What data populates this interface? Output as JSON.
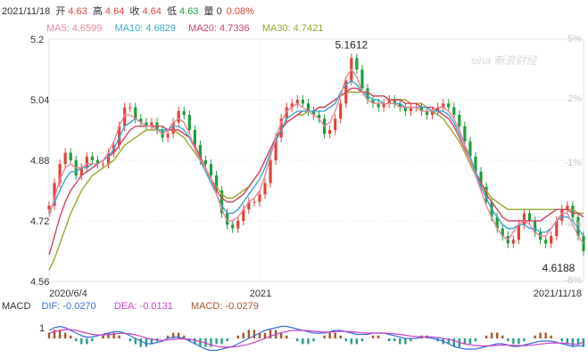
{
  "quote": {
    "date": "2021/11/18",
    "open_label": "开",
    "open": "4.63",
    "high_label": "高",
    "high": "4.64",
    "close_label": "收",
    "close": "4.64",
    "low_label": "低",
    "low": "4.63",
    "volume_label": "量",
    "volume": "0",
    "change_pct": "0.08%"
  },
  "ma": [
    {
      "label": "MA5:",
      "value": "4.6599",
      "color": "#e8869c"
    },
    {
      "label": "MA10:",
      "value": "4.6829",
      "color": "#3aa7c9"
    },
    {
      "label": "MA20:",
      "value": "4.7336",
      "color": "#d24366"
    },
    {
      "label": "MA30:",
      "value": "4.7421",
      "color": "#9aa72c"
    }
  ],
  "macd_legend": {
    "title": "MACD",
    "dif_label": "DIF:",
    "dif": "-0.0270",
    "dea_label": "DEA:",
    "dea": "-0.0131",
    "macd_label": "MACD:",
    "macd": "-0.0279"
  },
  "watermark": "sina 新浪财经",
  "chart_data": {
    "type": "candlestick",
    "y_ticks": [
      "5.2",
      "5.04",
      "4.88",
      "4.72",
      "4.56"
    ],
    "ylim": [
      4.56,
      5.2
    ],
    "pct_ticks": [
      "5%",
      "2%",
      "-1%",
      "-4%",
      "-8%"
    ],
    "x_ticks": [
      "2020/6/4",
      "2021",
      "2021/11/18"
    ],
    "max_annotation": "5.1612",
    "min_annotation": "4.6188",
    "macd_y_tick": "1",
    "close_series": [
      4.76,
      4.82,
      4.87,
      4.9,
      4.88,
      4.84,
      4.86,
      4.89,
      4.88,
      4.87,
      4.87,
      4.9,
      4.92,
      4.97,
      5.02,
      5.02,
      4.99,
      4.98,
      4.97,
      4.98,
      4.96,
      4.94,
      4.95,
      4.98,
      5.01,
      5.0,
      4.96,
      4.92,
      4.88,
      4.87,
      4.84,
      4.8,
      4.74,
      4.71,
      4.7,
      4.72,
      4.75,
      4.77,
      4.77,
      4.79,
      4.82,
      4.88,
      4.94,
      4.99,
      5.02,
      5.03,
      5.04,
      5.03,
      5.01,
      5.0,
      4.99,
      4.95,
      4.96,
      4.99,
      5.03,
      5.09,
      5.15,
      5.12,
      5.07,
      5.04,
      5.03,
      5.02,
      5.03,
      5.04,
      5.03,
      5.02,
      5.01,
      5.02,
      5.02,
      5.01,
      5.0,
      5.01,
      5.02,
      5.03,
      5.02,
      5.0,
      4.97,
      4.93,
      4.89,
      4.85,
      4.81,
      4.77,
      4.73,
      4.7,
      4.68,
      4.66,
      4.67,
      4.71,
      4.74,
      4.72,
      4.69,
      4.67,
      4.66,
      4.68,
      4.72,
      4.75,
      4.76,
      4.73,
      4.68,
      4.64
    ],
    "ma5": [
      4.73,
      4.78,
      4.83,
      4.86,
      4.87,
      4.86,
      4.86,
      4.87,
      4.87,
      4.87,
      4.88,
      4.9,
      4.93,
      4.97,
      5.0,
      5.0,
      4.99,
      4.98,
      4.97,
      4.97,
      4.96,
      4.95,
      4.96,
      4.98,
      4.99,
      4.98,
      4.95,
      4.91,
      4.88,
      4.86,
      4.83,
      4.79,
      4.75,
      4.72,
      4.72,
      4.73,
      4.75,
      4.77,
      4.78,
      4.8,
      4.84,
      4.89,
      4.94,
      4.98,
      5.01,
      5.02,
      5.03,
      5.02,
      5.01,
      5.0,
      4.99,
      4.97,
      4.98,
      5.01,
      5.05,
      5.1,
      5.12,
      5.1,
      5.06,
      5.04,
      5.03,
      5.03,
      5.03,
      5.03,
      5.03,
      5.02,
      5.02,
      5.02,
      5.02,
      5.01,
      5.01,
      5.01,
      5.02,
      5.02,
      5.01,
      4.99,
      4.96,
      4.92,
      4.88,
      4.84,
      4.8,
      4.76,
      4.73,
      4.7,
      4.68,
      4.67,
      4.69,
      4.71,
      4.72,
      4.71,
      4.69,
      4.68,
      4.68,
      4.7,
      4.72,
      4.74,
      4.74,
      4.71,
      4.68,
      4.66
    ],
    "ma10": [
      4.74,
      4.77,
      4.8,
      4.83,
      4.85,
      4.85,
      4.86,
      4.86,
      4.87,
      4.87,
      4.88,
      4.89,
      4.91,
      4.94,
      4.97,
      4.98,
      4.99,
      4.98,
      4.97,
      4.97,
      4.96,
      4.96,
      4.96,
      4.97,
      4.97,
      4.96,
      4.94,
      4.91,
      4.88,
      4.85,
      4.82,
      4.79,
      4.76,
      4.74,
      4.74,
      4.75,
      4.77,
      4.79,
      4.81,
      4.83,
      4.86,
      4.9,
      4.93,
      4.96,
      4.99,
      5.0,
      5.01,
      5.01,
      5.01,
      5.01,
      5.01,
      5.01,
      5.02,
      5.03,
      5.06,
      5.08,
      5.09,
      5.08,
      5.06,
      5.05,
      5.04,
      5.04,
      5.03,
      5.03,
      5.03,
      5.03,
      5.02,
      5.02,
      5.02,
      5.02,
      5.02,
      5.01,
      5.01,
      5.01,
      5.0,
      4.98,
      4.95,
      4.92,
      4.89,
      4.85,
      4.81,
      4.78,
      4.75,
      4.73,
      4.71,
      4.7,
      4.7,
      4.71,
      4.71,
      4.7,
      4.7,
      4.69,
      4.69,
      4.7,
      4.72,
      4.73,
      4.73,
      4.72,
      4.7,
      4.68
    ],
    "ma20": [
      4.63,
      4.68,
      4.73,
      4.77,
      4.8,
      4.82,
      4.84,
      4.85,
      4.86,
      4.87,
      4.88,
      4.89,
      4.9,
      4.92,
      4.94,
      4.96,
      4.97,
      4.97,
      4.97,
      4.97,
      4.97,
      4.97,
      4.96,
      4.96,
      4.96,
      4.95,
      4.94,
      4.92,
      4.89,
      4.86,
      4.83,
      4.8,
      4.78,
      4.77,
      4.77,
      4.78,
      4.79,
      4.81,
      4.83,
      4.85,
      4.88,
      4.91,
      4.94,
      4.96,
      4.98,
      4.99,
      5.0,
      5.01,
      5.01,
      5.01,
      5.02,
      5.02,
      5.03,
      5.04,
      5.05,
      5.06,
      5.07,
      5.07,
      5.06,
      5.06,
      5.05,
      5.05,
      5.05,
      5.04,
      5.04,
      5.04,
      5.03,
      5.03,
      5.03,
      5.02,
      5.02,
      5.02,
      5.01,
      5.0,
      4.99,
      4.97,
      4.94,
      4.91,
      4.88,
      4.85,
      4.82,
      4.79,
      4.77,
      4.75,
      4.73,
      4.72,
      4.72,
      4.72,
      4.72,
      4.72,
      4.72,
      4.72,
      4.73,
      4.74,
      4.75,
      4.75,
      4.75,
      4.74,
      4.74,
      4.73
    ],
    "ma30": [
      4.59,
      4.62,
      4.66,
      4.7,
      4.74,
      4.77,
      4.8,
      4.82,
      4.84,
      4.85,
      4.86,
      4.87,
      4.88,
      4.9,
      4.92,
      4.93,
      4.94,
      4.95,
      4.96,
      4.96,
      4.96,
      4.96,
      4.96,
      4.96,
      4.95,
      4.94,
      4.92,
      4.9,
      4.88,
      4.85,
      4.83,
      4.81,
      4.79,
      4.78,
      4.78,
      4.79,
      4.8,
      4.81,
      4.83,
      4.85,
      4.88,
      4.91,
      4.94,
      4.96,
      4.98,
      4.99,
      5.0,
      5.0,
      5.01,
      5.01,
      5.02,
      5.02,
      5.03,
      5.04,
      5.05,
      5.06,
      5.06,
      5.06,
      5.06,
      5.06,
      5.05,
      5.05,
      5.05,
      5.04,
      5.04,
      5.04,
      5.04,
      5.03,
      5.03,
      5.03,
      5.02,
      5.01,
      5.0,
      4.99,
      4.97,
      4.95,
      4.93,
      4.9,
      4.87,
      4.84,
      4.82,
      4.8,
      4.78,
      4.77,
      4.76,
      4.75,
      4.75,
      4.75,
      4.75,
      4.75,
      4.75,
      4.75,
      4.75,
      4.75,
      4.75,
      4.75,
      4.75,
      4.75,
      4.74,
      4.74
    ],
    "macd_hist": [
      0.02,
      0.03,
      0.03,
      0.02,
      0.01,
      -0.01,
      -0.02,
      -0.02,
      -0.01,
      0.0,
      0.01,
      0.02,
      0.02,
      0.01,
      0.0,
      -0.01,
      -0.02,
      -0.03,
      -0.03,
      -0.02,
      -0.01,
      0.0,
      0.01,
      0.02,
      0.02,
      0.01,
      -0.01,
      -0.02,
      -0.03,
      -0.03,
      -0.03,
      -0.02,
      -0.02,
      -0.01,
      0.0,
      0.01,
      0.02,
      0.03,
      0.03,
      0.02,
      0.02,
      0.03,
      0.03,
      0.02,
      0.01,
      0.0,
      -0.01,
      -0.02,
      -0.02,
      -0.01,
      0.0,
      0.01,
      0.02,
      0.02,
      0.01,
      -0.01,
      -0.02,
      -0.02,
      -0.01,
      0.0,
      0.01,
      0.01,
      0.0,
      -0.01,
      -0.01,
      -0.02,
      -0.02,
      -0.01,
      0.0,
      0.01,
      0.01,
      0.0,
      -0.01,
      -0.02,
      -0.02,
      -0.03,
      -0.03,
      -0.02,
      -0.02,
      -0.01,
      0.0,
      0.01,
      0.02,
      0.02,
      0.01,
      -0.01,
      -0.02,
      -0.02,
      -0.01,
      0.0,
      0.01,
      0.02,
      0.02,
      0.01,
      0.0,
      -0.01,
      -0.02,
      -0.03,
      -0.02,
      -0.03
    ],
    "dif": [
      0.03,
      0.04,
      0.045,
      0.04,
      0.03,
      0.02,
      0.01,
      0.005,
      0.005,
      0.01,
      0.015,
      0.02,
      0.025,
      0.025,
      0.02,
      0.01,
      0.0,
      -0.01,
      -0.02,
      -0.02,
      -0.015,
      -0.01,
      0.0,
      0.005,
      0.005,
      0.0,
      -0.01,
      -0.02,
      -0.03,
      -0.04,
      -0.045,
      -0.045,
      -0.04,
      -0.035,
      -0.03,
      -0.02,
      -0.01,
      0.0,
      0.01,
      0.02,
      0.03,
      0.035,
      0.04,
      0.045,
      0.045,
      0.04,
      0.035,
      0.03,
      0.025,
      0.02,
      0.02,
      0.02,
      0.025,
      0.03,
      0.03,
      0.025,
      0.02,
      0.015,
      0.015,
      0.015,
      0.02,
      0.02,
      0.02,
      0.015,
      0.01,
      0.005,
      0.0,
      0.0,
      0.0,
      0.005,
      0.005,
      0.0,
      -0.005,
      -0.01,
      -0.02,
      -0.03,
      -0.035,
      -0.04,
      -0.04,
      -0.04,
      -0.035,
      -0.03,
      -0.025,
      -0.02,
      -0.02,
      -0.025,
      -0.03,
      -0.03,
      -0.025,
      -0.02,
      -0.015,
      -0.01,
      -0.01,
      -0.01,
      -0.015,
      -0.02,
      -0.025,
      -0.03,
      -0.028,
      -0.027
    ],
    "dea": [
      0.02,
      0.025,
      0.03,
      0.033,
      0.033,
      0.03,
      0.025,
      0.02,
      0.015,
      0.013,
      0.013,
      0.015,
      0.017,
      0.019,
      0.019,
      0.017,
      0.013,
      0.008,
      0.002,
      -0.003,
      -0.006,
      -0.007,
      -0.006,
      -0.004,
      -0.002,
      -0.002,
      -0.004,
      -0.007,
      -0.012,
      -0.018,
      -0.024,
      -0.029,
      -0.032,
      -0.033,
      -0.032,
      -0.03,
      -0.026,
      -0.021,
      -0.015,
      -0.008,
      0.0,
      0.008,
      0.015,
      0.021,
      0.026,
      0.029,
      0.03,
      0.03,
      0.029,
      0.027,
      0.025,
      0.024,
      0.024,
      0.025,
      0.026,
      0.026,
      0.025,
      0.023,
      0.021,
      0.02,
      0.02,
      0.02,
      0.02,
      0.019,
      0.017,
      0.015,
      0.012,
      0.009,
      0.007,
      0.006,
      0.006,
      0.005,
      0.003,
      0.0,
      -0.004,
      -0.009,
      -0.015,
      -0.02,
      -0.024,
      -0.027,
      -0.028,
      -0.028,
      -0.027,
      -0.026,
      -0.025,
      -0.025,
      -0.026,
      -0.027,
      -0.027,
      -0.026,
      -0.024,
      -0.021,
      -0.019,
      -0.017,
      -0.017,
      -0.017,
      -0.019,
      -0.021,
      -0.022,
      -0.0131
    ]
  }
}
